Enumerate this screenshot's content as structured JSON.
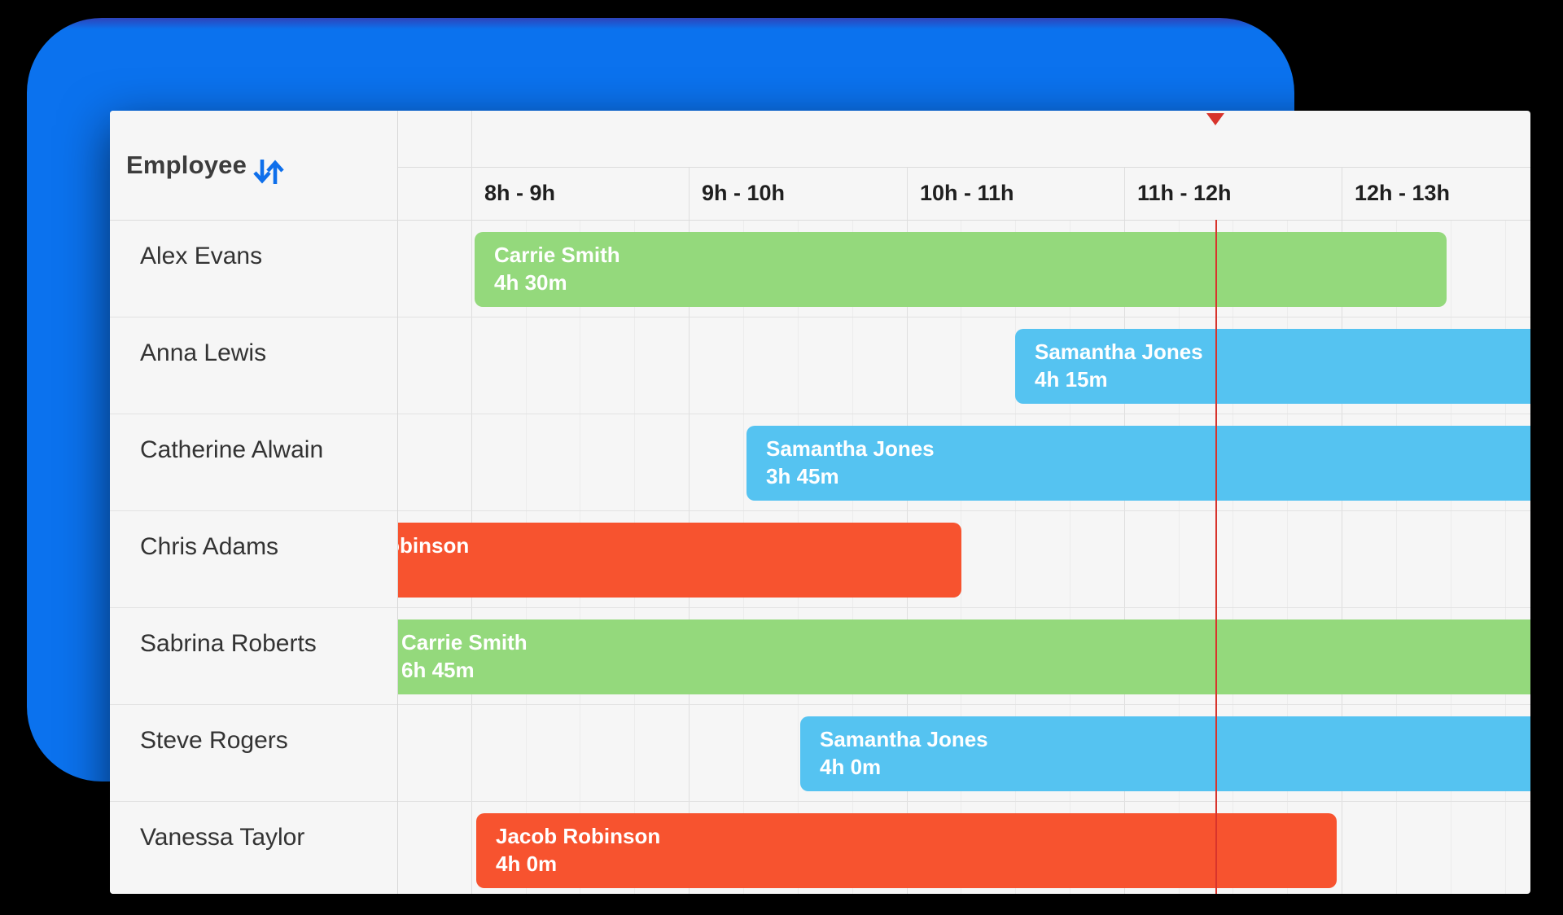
{
  "window": {
    "background": "#000000"
  },
  "backdrop": {
    "accent_color": "#0B72EE"
  },
  "panel": {
    "header_label": "Employee",
    "sort_icon_color": "#0E6FEB",
    "employees": [
      "Alex Evans",
      "Anna Lewis",
      "Catherine Alwain",
      "Chris Adams",
      "Sabrina Roberts",
      "Steve Rogers",
      "Vanessa Taylor"
    ]
  },
  "timeline": {
    "hour_headers": [
      "8h - 9h",
      "9h - 10h",
      "10h - 11h",
      "11h - 12h",
      "12h - 13h"
    ],
    "marker_color": "#D8342C"
  },
  "bars": [
    {
      "row": "Alex Evans",
      "label": "Carrie Smith",
      "duration": "4h 30m",
      "color": "#94D97C"
    },
    {
      "row": "Anna Lewis",
      "label": "Samantha Jones",
      "duration": "4h 15m",
      "color": "#55C3F1"
    },
    {
      "row": "Catherine Alwain",
      "label": "Samantha Jones",
      "duration": "3h 45m",
      "color": "#55C3F1"
    },
    {
      "row": "Chris Adams",
      "label": "Jacob Robinson",
      "color": "#F7532F"
    },
    {
      "row": "Sabrina Roberts",
      "label": "Carrie Smith",
      "duration": "6h 45m",
      "color": "#94D97C"
    },
    {
      "row": "Steve Rogers",
      "label": "Samantha Jones",
      "duration": "4h 0m",
      "color": "#55C3F1"
    },
    {
      "row": "Vanessa Taylor",
      "label": "Jacob Robinson",
      "duration": "4h 0m",
      "color": "#F7532F"
    }
  ]
}
